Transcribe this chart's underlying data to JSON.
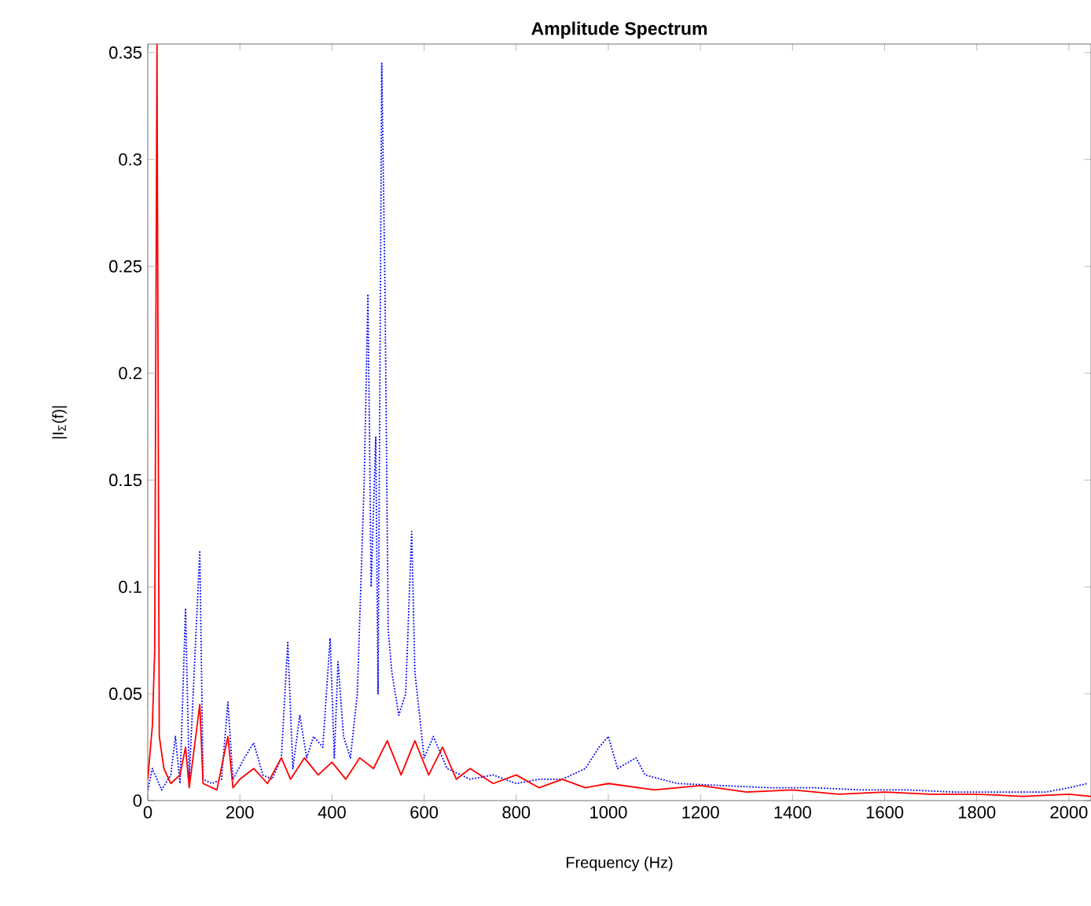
{
  "chart_data": {
    "type": "line",
    "title": "Amplitude Spectrum",
    "xlabel": "Frequency (Hz)",
    "ylabel": "|I$_{Σ}$(f)|",
    "xlim": [
      0,
      2048
    ],
    "ylim": [
      0,
      0.354
    ],
    "xticks": [
      0,
      200,
      400,
      600,
      800,
      1000,
      1200,
      1400,
      1600,
      1800,
      2000
    ],
    "yticks": [
      0,
      0.05,
      0.1,
      0.15,
      0.2,
      0.25,
      0.3,
      0.35
    ],
    "grid": false,
    "series": [
      {
        "color": "#0000ff",
        "line_style": "dotted",
        "x": [
          0,
          10,
          20,
          30,
          50,
          60,
          70,
          82,
          90,
          113,
          120,
          140,
          160,
          174,
          185,
          210,
          230,
          250,
          270,
          290,
          304,
          315,
          330,
          345,
          360,
          380,
          396,
          405,
          413,
          425,
          440,
          455,
          470,
          478,
          485,
          495,
          500,
          508,
          515,
          522,
          530,
          545,
          560,
          573,
          580,
          600,
          620,
          650,
          700,
          750,
          800,
          850,
          900,
          950,
          980,
          1000,
          1020,
          1060,
          1080,
          1150,
          1250,
          1350,
          1450,
          1550,
          1650,
          1750,
          1850,
          1950,
          2000,
          2040
        ],
        "values": [
          0.005,
          0.015,
          0.01,
          0.005,
          0.012,
          0.03,
          0.008,
          0.09,
          0.01,
          0.117,
          0.01,
          0.008,
          0.01,
          0.046,
          0.01,
          0.02,
          0.027,
          0.012,
          0.01,
          0.02,
          0.074,
          0.015,
          0.04,
          0.02,
          0.03,
          0.025,
          0.076,
          0.02,
          0.065,
          0.03,
          0.02,
          0.05,
          0.15,
          0.237,
          0.1,
          0.17,
          0.05,
          0.345,
          0.24,
          0.08,
          0.06,
          0.04,
          0.05,
          0.126,
          0.06,
          0.02,
          0.03,
          0.015,
          0.01,
          0.012,
          0.008,
          0.01,
          0.01,
          0.015,
          0.025,
          0.03,
          0.015,
          0.02,
          0.012,
          0.008,
          0.007,
          0.006,
          0.006,
          0.005,
          0.005,
          0.004,
          0.004,
          0.004,
          0.006,
          0.008
        ]
      },
      {
        "color": "#ff0000",
        "line_style": "solid",
        "x": [
          0,
          10,
          15,
          20,
          25,
          35,
          50,
          70,
          82,
          90,
          113,
          120,
          150,
          174,
          185,
          200,
          230,
          260,
          290,
          310,
          340,
          370,
          400,
          430,
          460,
          490,
          520,
          550,
          580,
          610,
          640,
          670,
          700,
          750,
          800,
          850,
          900,
          950,
          1000,
          1100,
          1200,
          1300,
          1400,
          1500,
          1600,
          1700,
          1800,
          1900,
          2000,
          2048
        ],
        "values": [
          0.01,
          0.035,
          0.07,
          0.354,
          0.03,
          0.015,
          0.008,
          0.012,
          0.025,
          0.006,
          0.045,
          0.008,
          0.005,
          0.03,
          0.006,
          0.01,
          0.015,
          0.008,
          0.02,
          0.01,
          0.02,
          0.012,
          0.018,
          0.01,
          0.02,
          0.015,
          0.028,
          0.012,
          0.028,
          0.012,
          0.025,
          0.01,
          0.015,
          0.008,
          0.012,
          0.006,
          0.01,
          0.006,
          0.008,
          0.005,
          0.007,
          0.004,
          0.005,
          0.003,
          0.004,
          0.003,
          0.003,
          0.002,
          0.003,
          0.002
        ]
      }
    ]
  }
}
